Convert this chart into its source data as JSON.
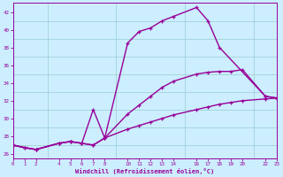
{
  "xlabel": "Windchill (Refroidissement éolien,°C)",
  "background_color": "#cceeff",
  "grid_color": "#99cccc",
  "line_color": "#990099",
  "xlim": [
    0,
    23
  ],
  "ylim": [
    25.5,
    43
  ],
  "xticks": [
    0,
    1,
    2,
    4,
    5,
    6,
    7,
    8,
    10,
    11,
    12,
    13,
    14,
    16,
    17,
    18,
    19,
    20,
    22,
    23
  ],
  "yticks": [
    26,
    28,
    30,
    32,
    34,
    36,
    38,
    40,
    42
  ],
  "series": [
    {
      "x": [
        0,
        1,
        2,
        4,
        5,
        6,
        7,
        8,
        10,
        11,
        12,
        13,
        14,
        16,
        17,
        18,
        19,
        20,
        22,
        23
      ],
      "y": [
        27.0,
        26.7,
        26.5,
        27.2,
        27.4,
        27.2,
        27.0,
        27.8,
        28.8,
        29.2,
        29.6,
        30.0,
        30.4,
        31.0,
        31.3,
        31.6,
        31.8,
        32.0,
        32.2,
        32.3
      ],
      "marker": "+",
      "lw": 1.0
    },
    {
      "x": [
        0,
        1,
        2,
        4,
        5,
        6,
        7,
        8,
        10,
        11,
        12,
        13,
        14,
        16,
        17,
        18,
        19,
        20,
        22,
        23
      ],
      "y": [
        27.0,
        26.7,
        26.5,
        27.2,
        27.4,
        27.2,
        27.0,
        27.8,
        30.5,
        31.5,
        32.5,
        33.5,
        34.2,
        35.0,
        35.2,
        35.3,
        35.3,
        35.5,
        32.5,
        32.3
      ],
      "marker": "+",
      "lw": 1.0
    },
    {
      "x": [
        0,
        2,
        4,
        5,
        6,
        7,
        8,
        10,
        11,
        12,
        13,
        14,
        16,
        17,
        18,
        22,
        23
      ],
      "y": [
        27.0,
        26.5,
        27.2,
        27.4,
        27.2,
        31.0,
        27.8,
        38.5,
        39.8,
        40.2,
        41.0,
        41.5,
        42.5,
        41.0,
        38.0,
        32.5,
        32.3
      ],
      "marker": "+",
      "lw": 1.0
    }
  ]
}
